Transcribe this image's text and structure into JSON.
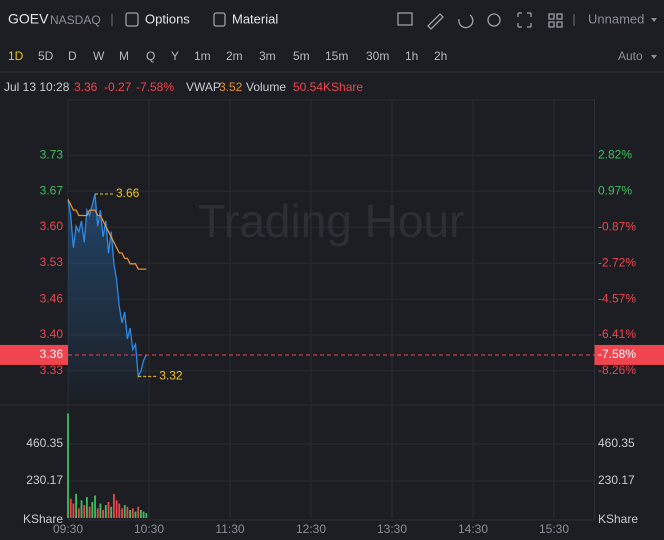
{
  "toolbar": {
    "symbol": "GOEV",
    "exchange": "NASDAQ",
    "options": "Options",
    "material": "Material",
    "layout": "Unnamed"
  },
  "periods": {
    "items": [
      "1D",
      "5D",
      "D",
      "W",
      "M",
      "Q",
      "Y",
      "1m",
      "2m",
      "3m",
      "5m",
      "15m",
      "30m",
      "1h",
      "2h"
    ],
    "active": 0,
    "mode": "Auto"
  },
  "quote": {
    "time": "Jul 13 10:28",
    "price": 3.36,
    "change": -0.27,
    "change_pct": {
      "value": -7.58,
      "label": "-7.58%"
    },
    "vwap_label": "VWAP",
    "vwap": 3.52,
    "volume_label": "Volume",
    "volume": "50.54KShare"
  },
  "watermark": "Trading Hour",
  "chart_data": [
    {
      "type": "line",
      "x": [
        "09:30",
        "09:32",
        "09:34",
        "09:36",
        "09:38",
        "09:40",
        "09:42",
        "09:44",
        "09:46",
        "09:48",
        "09:50",
        "09:52",
        "09:54",
        "09:56",
        "09:58",
        "10:00",
        "10:02",
        "10:04",
        "10:06",
        "10:08",
        "10:10",
        "10:12",
        "10:14",
        "10:16",
        "10:18",
        "10:20",
        "10:22",
        "10:24",
        "10:26",
        "10:28"
      ],
      "xlim": [
        "09:30",
        "16:00"
      ],
      "xticks": [
        "09:30",
        "10:30",
        "11:30",
        "12:30",
        "13:30",
        "14:30",
        "15:30"
      ],
      "ylim": [
        3.276,
        3.826
      ],
      "yticks": [
        {
          "value": 3.7324,
          "label": "3.73"
        },
        {
          "value": 3.6652,
          "label": "3.67"
        },
        {
          "value": 3.5984,
          "label": "3.60"
        },
        {
          "value": 3.5313,
          "label": "3.53"
        },
        {
          "value": 3.4641,
          "label": "3.46"
        },
        {
          "value": 3.3973,
          "label": "3.40"
        },
        {
          "value": 3.3302,
          "label": "3.33"
        }
      ],
      "y2lim": [
        -9.75,
        5.4
      ],
      "y2ticks": [
        {
          "value": 2.82,
          "label": "2.82%"
        },
        {
          "value": 0.97,
          "label": "0.97%"
        },
        {
          "value": -0.87,
          "label": "-0.87%"
        },
        {
          "value": -2.72,
          "label": "-2.72%"
        },
        {
          "value": -4.57,
          "label": "-4.57%"
        },
        {
          "value": -6.41,
          "label": "-6.41%"
        },
        {
          "value": -8.26,
          "label": "-8.26%"
        }
      ],
      "series": [
        {
          "color": "#2e8ae6",
          "values": [
            3.65,
            3.62,
            3.56,
            3.6,
            3.59,
            3.61,
            3.57,
            3.63,
            3.62,
            3.64,
            3.66,
            3.6,
            3.63,
            3.58,
            3.61,
            3.55,
            3.59,
            3.53,
            3.5,
            3.45,
            3.42,
            3.44,
            3.39,
            3.41,
            3.37,
            3.38,
            3.32,
            3.33,
            3.35,
            3.36
          ]
        },
        {
          "color": "#e8912f",
          "values": [
            3.65,
            3.64,
            3.63,
            3.63,
            3.62,
            3.62,
            3.62,
            3.62,
            3.63,
            3.63,
            3.63,
            3.62,
            3.62,
            3.61,
            3.6,
            3.59,
            3.58,
            3.57,
            3.56,
            3.55,
            3.55,
            3.54,
            3.54,
            3.53,
            3.53,
            3.53,
            3.52,
            3.52,
            3.52,
            3.52
          ]
        }
      ],
      "annotations": [
        {
          "x": "09:50",
          "value": 3.66
        },
        {
          "x": "10:22",
          "value": 3.32
        }
      ],
      "annotation_color": "#f2c318",
      "grid": true,
      "up_color": "#3fbf5f",
      "down_color": "#f0454e"
    },
    {
      "type": "bar",
      "x": [
        "09:30",
        "09:32",
        "09:34",
        "09:36",
        "09:38",
        "09:40",
        "09:42",
        "09:44",
        "09:46",
        "09:48",
        "09:50",
        "09:52",
        "09:54",
        "09:56",
        "09:58",
        "10:00",
        "10:02",
        "10:04",
        "10:06",
        "10:08",
        "10:10",
        "10:12",
        "10:14",
        "10:16",
        "10:18",
        "10:20",
        "10:22",
        "10:24",
        "10:26",
        "10:28"
      ],
      "xlim": [
        "09:30",
        "16:00"
      ],
      "xticks": [
        "09:30",
        "10:30",
        "11:30",
        "12:30",
        "13:30",
        "14:30",
        "15:30"
      ],
      "ylim": [
        0,
        690.52
      ],
      "yticks": [
        230.17,
        460.35
      ],
      "y_label": "KShare",
      "values": [
        650,
        120,
        90,
        150,
        60,
        110,
        80,
        130,
        70,
        100,
        140,
        60,
        90,
        50,
        80,
        100,
        70,
        150,
        110,
        90,
        60,
        80,
        70,
        50,
        60,
        40,
        70,
        50,
        40,
        30
      ],
      "colors": [
        "#3fbf5f",
        "#f0454e",
        "#f0454e",
        "#3fbf5f",
        "#f0454e",
        "#3fbf5f",
        "#f0454e",
        "#3fbf5f",
        "#f0454e",
        "#3fbf5f",
        "#3fbf5f",
        "#f0454e",
        "#3fbf5f",
        "#f0454e",
        "#3fbf5f",
        "#f0454e",
        "#3fbf5f",
        "#f0454e",
        "#f0454e",
        "#f0454e",
        "#f0454e",
        "#3fbf5f",
        "#f0454e",
        "#3fbf5f",
        "#f0454e",
        "#3fbf5f",
        "#f0454e",
        "#3fbf5f",
        "#3fbf5f",
        "#3fbf5f"
      ],
      "grid": true
    }
  ]
}
